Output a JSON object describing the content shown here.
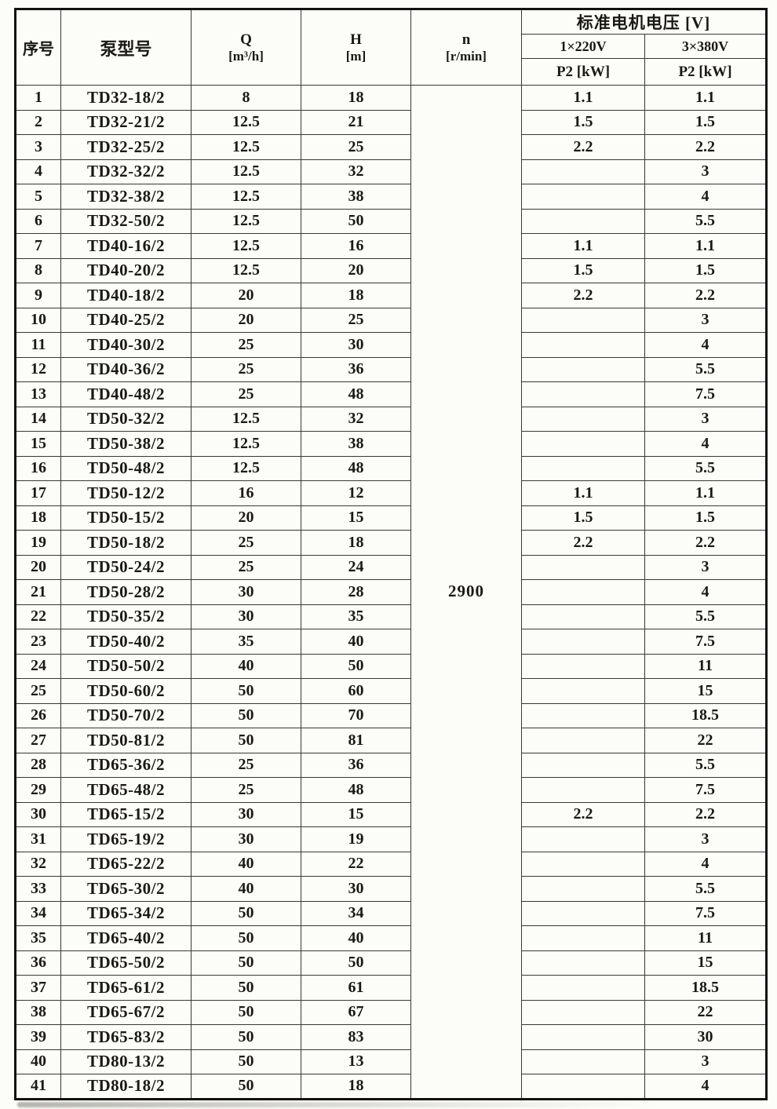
{
  "document": {
    "type": "pump-specification-table",
    "motor_speed_rpm": "2900"
  },
  "header": {
    "index": "序号",
    "model": "泵型号",
    "q_symbol": "Q",
    "q_unit": "[m³/h]",
    "h_symbol": "H",
    "h_unit": "[m]",
    "n_symbol": "n",
    "n_unit": "[r/min]",
    "voltage_group": "标准电机电压 [V]",
    "v220": "1×220V",
    "v380": "3×380V",
    "p2_220": "P2 [kW]",
    "p2_380": "P2 [kW]"
  },
  "n_value": "2900",
  "rows": [
    {
      "no": "1",
      "model": "TD32-18/2",
      "q": "8",
      "h": "18",
      "p220": "1.1",
      "p380": "1.1"
    },
    {
      "no": "2",
      "model": "TD32-21/2",
      "q": "12.5",
      "h": "21",
      "p220": "1.5",
      "p380": "1.5"
    },
    {
      "no": "3",
      "model": "TD32-25/2",
      "q": "12.5",
      "h": "25",
      "p220": "2.2",
      "p380": "2.2"
    },
    {
      "no": "4",
      "model": "TD32-32/2",
      "q": "12.5",
      "h": "32",
      "p220": "",
      "p380": "3"
    },
    {
      "no": "5",
      "model": "TD32-38/2",
      "q": "12.5",
      "h": "38",
      "p220": "",
      "p380": "4"
    },
    {
      "no": "6",
      "model": "TD32-50/2",
      "q": "12.5",
      "h": "50",
      "p220": "",
      "p380": "5.5"
    },
    {
      "no": "7",
      "model": "TD40-16/2",
      "q": "12.5",
      "h": "16",
      "p220": "1.1",
      "p380": "1.1"
    },
    {
      "no": "8",
      "model": "TD40-20/2",
      "q": "12.5",
      "h": "20",
      "p220": "1.5",
      "p380": "1.5"
    },
    {
      "no": "9",
      "model": "TD40-18/2",
      "q": "20",
      "h": "18",
      "p220": "2.2",
      "p380": "2.2"
    },
    {
      "no": "10",
      "model": "TD40-25/2",
      "q": "20",
      "h": "25",
      "p220": "",
      "p380": "3"
    },
    {
      "no": "11",
      "model": "TD40-30/2",
      "q": "25",
      "h": "30",
      "p220": "",
      "p380": "4"
    },
    {
      "no": "12",
      "model": "TD40-36/2",
      "q": "25",
      "h": "36",
      "p220": "",
      "p380": "5.5"
    },
    {
      "no": "13",
      "model": "TD40-48/2",
      "q": "25",
      "h": "48",
      "p220": "",
      "p380": "7.5"
    },
    {
      "no": "14",
      "model": "TD50-32/2",
      "q": "12.5",
      "h": "32",
      "p220": "",
      "p380": "3"
    },
    {
      "no": "15",
      "model": "TD50-38/2",
      "q": "12.5",
      "h": "38",
      "p220": "",
      "p380": "4"
    },
    {
      "no": "16",
      "model": "TD50-48/2",
      "q": "12.5",
      "h": "48",
      "p220": "",
      "p380": "5.5"
    },
    {
      "no": "17",
      "model": "TD50-12/2",
      "q": "16",
      "h": "12",
      "p220": "1.1",
      "p380": "1.1"
    },
    {
      "no": "18",
      "model": "TD50-15/2",
      "q": "20",
      "h": "15",
      "p220": "1.5",
      "p380": "1.5"
    },
    {
      "no": "19",
      "model": "TD50-18/2",
      "q": "25",
      "h": "18",
      "p220": "2.2",
      "p380": "2.2"
    },
    {
      "no": "20",
      "model": "TD50-24/2",
      "q": "25",
      "h": "24",
      "p220": "",
      "p380": "3"
    },
    {
      "no": "21",
      "model": "TD50-28/2",
      "q": "30",
      "h": "28",
      "p220": "",
      "p380": "4"
    },
    {
      "no": "22",
      "model": "TD50-35/2",
      "q": "30",
      "h": "35",
      "p220": "",
      "p380": "5.5"
    },
    {
      "no": "23",
      "model": "TD50-40/2",
      "q": "35",
      "h": "40",
      "p220": "",
      "p380": "7.5"
    },
    {
      "no": "24",
      "model": "TD50-50/2",
      "q": "40",
      "h": "50",
      "p220": "",
      "p380": "11"
    },
    {
      "no": "25",
      "model": "TD50-60/2",
      "q": "50",
      "h": "60",
      "p220": "",
      "p380": "15"
    },
    {
      "no": "26",
      "model": "TD50-70/2",
      "q": "50",
      "h": "70",
      "p220": "",
      "p380": "18.5"
    },
    {
      "no": "27",
      "model": "TD50-81/2",
      "q": "50",
      "h": "81",
      "p220": "",
      "p380": "22"
    },
    {
      "no": "28",
      "model": "TD65-36/2",
      "q": "25",
      "h": "36",
      "p220": "",
      "p380": "5.5"
    },
    {
      "no": "29",
      "model": "TD65-48/2",
      "q": "25",
      "h": "48",
      "p220": "",
      "p380": "7.5"
    },
    {
      "no": "30",
      "model": "TD65-15/2",
      "q": "30",
      "h": "15",
      "p220": "2.2",
      "p380": "2.2"
    },
    {
      "no": "31",
      "model": "TD65-19/2",
      "q": "30",
      "h": "19",
      "p220": "",
      "p380": "3"
    },
    {
      "no": "32",
      "model": "TD65-22/2",
      "q": "40",
      "h": "22",
      "p220": "",
      "p380": "4"
    },
    {
      "no": "33",
      "model": "TD65-30/2",
      "q": "40",
      "h": "30",
      "p220": "",
      "p380": "5.5"
    },
    {
      "no": "34",
      "model": "TD65-34/2",
      "q": "50",
      "h": "34",
      "p220": "",
      "p380": "7.5"
    },
    {
      "no": "35",
      "model": "TD65-40/2",
      "q": "50",
      "h": "40",
      "p220": "",
      "p380": "11"
    },
    {
      "no": "36",
      "model": "TD65-50/2",
      "q": "50",
      "h": "50",
      "p220": "",
      "p380": "15"
    },
    {
      "no": "37",
      "model": "TD65-61/2",
      "q": "50",
      "h": "61",
      "p220": "",
      "p380": "18.5"
    },
    {
      "no": "38",
      "model": "TD65-67/2",
      "q": "50",
      "h": "67",
      "p220": "",
      "p380": "22"
    },
    {
      "no": "39",
      "model": "TD65-83/2",
      "q": "50",
      "h": "83",
      "p220": "",
      "p380": "30"
    },
    {
      "no": "40",
      "model": "TD80-13/2",
      "q": "50",
      "h": "13",
      "p220": "",
      "p380": "3"
    },
    {
      "no": "41",
      "model": "TD80-18/2",
      "q": "50",
      "h": "18",
      "p220": "",
      "p380": "4"
    }
  ],
  "colors": {
    "paper": "#fcfcf9",
    "ink": "#1b1915",
    "line": "#3a3833"
  }
}
